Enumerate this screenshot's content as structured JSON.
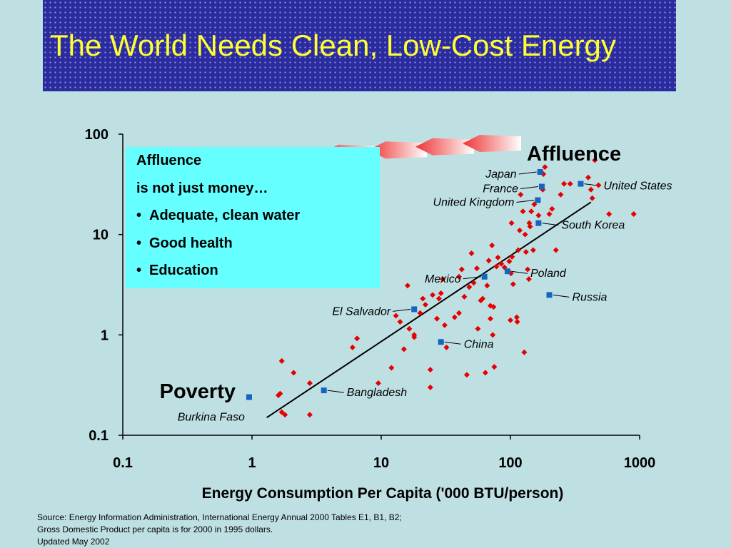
{
  "title": "The World Needs Clean, Low-Cost Energy",
  "colors": {
    "background": "#bfe0e3",
    "banner": "#2b2ba0",
    "title_text": "#ffff33",
    "info_box": "#66ffff",
    "diamond_markers": "#e60000",
    "highlight_markers": "#1565c0",
    "arrows": "#ee3333"
  },
  "info_box": {
    "heading": "Affluence",
    "subheading": "is not just money…",
    "bullets": [
      "Adequate, clean water",
      "Good health",
      "Education"
    ]
  },
  "arrows": {
    "count": 6,
    "direction": "left",
    "icon": "gradient-arrow-icon"
  },
  "source_note": [
    "Source:  Energy Information Administration, International Energy Annual 2000 Tables E1, B1, B2;",
    "Gross Domestic Product per capita is for 2000 in 1995 dollars.",
    "Updated May 2002"
  ],
  "chart_data": {
    "type": "scatter",
    "xlabel": "Energy Consumption Per Capita ('000 BTU/person)",
    "ylabel": "",
    "xscale": "log",
    "yscale": "log",
    "xlim": [
      0.1,
      1000
    ],
    "ylim": [
      0.1,
      100
    ],
    "x_tick_labels": [
      "0.1",
      "1",
      "10",
      "100",
      "1000"
    ],
    "y_tick_labels": [
      "0.1",
      "1",
      "10",
      "100"
    ],
    "grid": false,
    "annotations": [
      {
        "text": "Affluence",
        "x": 390,
        "y": 50
      },
      {
        "text": "Poverty",
        "x": 0.5,
        "y": 0.24
      }
    ],
    "trendline": {
      "x": [
        1.3,
        420
      ],
      "y": [
        0.15,
        21
      ]
    },
    "labeled_points": [
      {
        "name": "Japan",
        "x": 170,
        "y": 42,
        "label_side": "left"
      },
      {
        "name": "France",
        "x": 175,
        "y": 30,
        "label_side": "left"
      },
      {
        "name": "United Kingdom",
        "x": 163,
        "y": 22,
        "label_side": "left"
      },
      {
        "name": "United States",
        "x": 350,
        "y": 32,
        "label_side": "right"
      },
      {
        "name": "South Korea",
        "x": 165,
        "y": 13,
        "label_side": "right"
      },
      {
        "name": "Mexico",
        "x": 63,
        "y": 3.8,
        "label_side": "left"
      },
      {
        "name": "Poland",
        "x": 95,
        "y": 4.3,
        "label_side": "right"
      },
      {
        "name": "Russia",
        "x": 200,
        "y": 2.5,
        "label_side": "right"
      },
      {
        "name": "El Salvador",
        "x": 18,
        "y": 1.8,
        "label_side": "left"
      },
      {
        "name": "China",
        "x": 29,
        "y": 0.85,
        "label_side": "right"
      },
      {
        "name": "Bangladesh",
        "x": 3.6,
        "y": 0.28,
        "label_side": "right"
      },
      {
        "name": "Burkina Faso",
        "x": 0.95,
        "y": 0.24,
        "label_side": "below"
      }
    ],
    "series": [
      {
        "marker": "diamond",
        "points": [
          [
            1.6,
            0.25
          ],
          [
            1.65,
            0.26
          ],
          [
            1.7,
            0.55
          ],
          [
            1.7,
            0.17
          ],
          [
            1.8,
            0.16
          ],
          [
            2.1,
            0.42
          ],
          [
            2.8,
            0.33
          ],
          [
            2.8,
            0.16
          ],
          [
            6,
            0.75
          ],
          [
            6.5,
            0.92
          ],
          [
            9.5,
            0.33
          ],
          [
            12,
            0.47
          ],
          [
            13,
            1.55
          ],
          [
            14,
            1.35
          ],
          [
            15,
            0.72
          ],
          [
            16,
            3.1
          ],
          [
            16.5,
            1.15
          ],
          [
            18,
            0.95
          ],
          [
            18,
            1.0
          ],
          [
            20,
            1.65
          ],
          [
            21,
            2.3
          ],
          [
            22,
            2.0
          ],
          [
            24,
            0.45
          ],
          [
            24,
            0.3
          ],
          [
            25,
            2.5
          ],
          [
            27,
            1.45
          ],
          [
            28,
            2.3
          ],
          [
            29,
            2.6
          ],
          [
            30,
            3.6
          ],
          [
            31,
            1.25
          ],
          [
            32,
            0.75
          ],
          [
            37,
            1.5
          ],
          [
            40,
            3.8
          ],
          [
            40,
            1.65
          ],
          [
            42,
            4.5
          ],
          [
            44,
            2.4
          ],
          [
            46,
            0.4
          ],
          [
            48,
            3.0
          ],
          [
            50,
            6.5
          ],
          [
            52,
            3.3
          ],
          [
            55,
            4.6
          ],
          [
            56,
            1.15
          ],
          [
            59,
            2.2
          ],
          [
            61,
            2.3
          ],
          [
            64,
            0.42
          ],
          [
            66,
            3.1
          ],
          [
            68,
            5.5
          ],
          [
            70,
            1.45
          ],
          [
            70,
            1.95
          ],
          [
            72,
            7.8
          ],
          [
            73,
            1.0
          ],
          [
            74,
            1.9
          ],
          [
            75,
            0.48
          ],
          [
            78,
            4.8
          ],
          [
            80,
            5.9
          ],
          [
            85,
            5.1
          ],
          [
            90,
            4.7
          ],
          [
            98,
            5.4
          ],
          [
            100,
            1.4
          ],
          [
            101,
            4.1
          ],
          [
            102,
            13
          ],
          [
            103,
            6.0
          ],
          [
            105,
            3.2
          ],
          [
            112,
            1.5
          ],
          [
            113,
            1.35
          ],
          [
            115,
            7.0
          ],
          [
            118,
            11
          ],
          [
            120,
            25
          ],
          [
            125,
            17
          ],
          [
            128,
            0.67
          ],
          [
            130,
            10
          ],
          [
            132,
            6.7
          ],
          [
            136,
            4.5
          ],
          [
            139,
            3.6
          ],
          [
            140,
            13
          ],
          [
            142,
            12
          ],
          [
            145,
            17
          ],
          [
            150,
            7.0
          ],
          [
            153,
            20
          ],
          [
            165,
            15.5
          ],
          [
            178,
            28
          ],
          [
            180,
            40
          ],
          [
            185,
            47
          ],
          [
            200,
            16
          ],
          [
            210,
            18
          ],
          [
            225,
            7.0
          ],
          [
            245,
            25
          ],
          [
            260,
            32
          ],
          [
            290,
            32
          ],
          [
            400,
            37
          ],
          [
            430,
            23
          ],
          [
            420,
            28
          ],
          [
            450,
            55
          ],
          [
            480,
            31
          ],
          [
            580,
            16
          ],
          [
            900,
            16
          ]
        ]
      }
    ]
  }
}
